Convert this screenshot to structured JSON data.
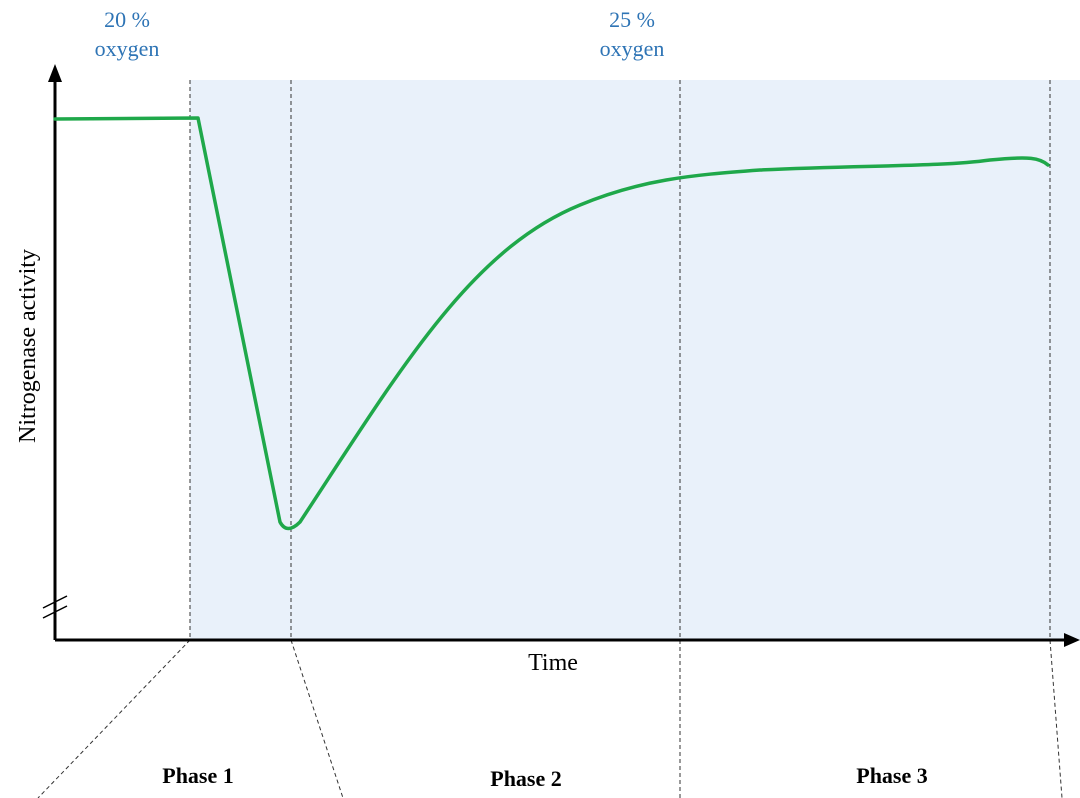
{
  "colors": {
    "shaded_region": "#e9f1fa",
    "curve": "#1fa84a",
    "annotation_text": "#2e74b5",
    "axis": "#000000",
    "guide_lines": "#333333"
  },
  "annotations": {
    "oxygen_start_percent": "20 %",
    "oxygen_start_label": "oxygen",
    "oxygen_shift_percent": "25 %",
    "oxygen_shift_label": "oxygen"
  },
  "axes": {
    "x_label": "Time",
    "y_label": "Nitrogenase activity",
    "y_axis_break": true,
    "show_ticks": false
  },
  "phases": [
    {
      "label": "Phase 1"
    },
    {
      "label": "Phase 2"
    },
    {
      "label": "Phase 3"
    }
  ],
  "curve": {
    "description_free": true,
    "shape": "constant-high, sharp drop at oxygen shift, slow recovery to plateau"
  }
}
